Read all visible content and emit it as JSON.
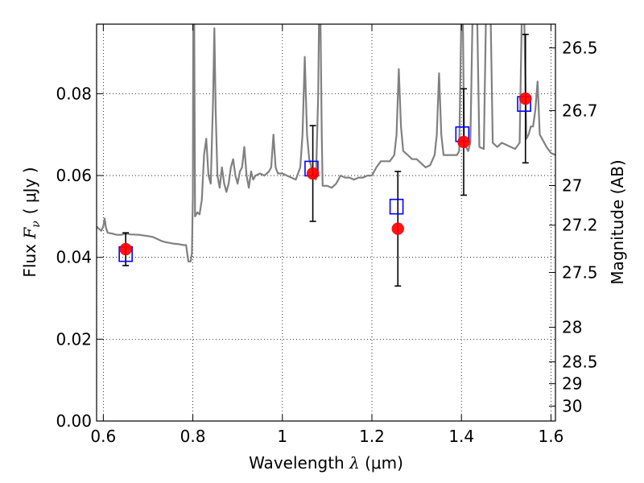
{
  "chart_data": {
    "type": "scatter",
    "xlabel": {
      "prefix": "Wavelength ",
      "symbol": "λ",
      "unit": " (μm)"
    },
    "ylabel": {
      "prefix": "Flux ",
      "symbol_main": "F",
      "symbol_sub": "ν",
      "unit": "( μJy )"
    },
    "y2label": "Magnitude (AB)",
    "xlim": [
      0.585,
      1.61
    ],
    "ylim": [
      0.0,
      0.097
    ],
    "xticks": [
      0.6,
      0.8,
      1.0,
      1.2,
      1.4,
      1.6
    ],
    "xtick_labels": [
      "0.6",
      "0.8",
      "1",
      "1.2",
      "1.4",
      "1.6"
    ],
    "yticks": [
      0.0,
      0.02,
      0.04,
      0.06,
      0.08
    ],
    "ytick_labels": [
      "0.00",
      "0.02",
      "0.04",
      "0.06",
      "0.08"
    ],
    "mag_ticks": [
      26.5,
      26.7,
      27.0,
      27.2,
      27.5,
      28.0,
      28.5,
      29.0,
      30.0
    ],
    "mag_tick_labels": [
      "26.5",
      "26.7",
      "27",
      "27.2",
      "27.5",
      "28",
      "28.5",
      "29",
      "30"
    ],
    "grid": true,
    "series": [
      {
        "kind": "model_spectrum",
        "color": "#808080",
        "points": [
          [
            0.585,
            0.0475
          ],
          [
            0.59,
            0.047
          ],
          [
            0.595,
            0.0465
          ],
          [
            0.6,
            0.0475
          ],
          [
            0.603,
            0.0495
          ],
          [
            0.606,
            0.0472
          ],
          [
            0.61,
            0.046
          ],
          [
            0.62,
            0.0458
          ],
          [
            0.63,
            0.0455
          ],
          [
            0.64,
            0.0455
          ],
          [
            0.65,
            0.0458
          ],
          [
            0.66,
            0.0456
          ],
          [
            0.68,
            0.0455
          ],
          [
            0.7,
            0.0452
          ],
          [
            0.71,
            0.045
          ],
          [
            0.72,
            0.0445
          ],
          [
            0.73,
            0.044
          ],
          [
            0.74,
            0.0437
          ],
          [
            0.75,
            0.0435
          ],
          [
            0.76,
            0.0433
          ],
          [
            0.77,
            0.0432
          ],
          [
            0.78,
            0.043
          ],
          [
            0.785,
            0.043
          ],
          [
            0.79,
            0.039
          ],
          [
            0.795,
            0.039
          ],
          [
            0.798,
            0.041
          ],
          [
            0.8,
            0.055
          ],
          [
            0.801,
            0.1
          ],
          [
            0.803,
            0.1
          ],
          [
            0.805,
            0.05
          ],
          [
            0.81,
            0.051
          ],
          [
            0.815,
            0.0505
          ],
          [
            0.82,
            0.054
          ],
          [
            0.825,
            0.065
          ],
          [
            0.83,
            0.069
          ],
          [
            0.835,
            0.06
          ],
          [
            0.84,
            0.058
          ],
          [
            0.845,
            0.078
          ],
          [
            0.848,
            0.096
          ],
          [
            0.851,
            0.076
          ],
          [
            0.855,
            0.06
          ],
          [
            0.86,
            0.057
          ],
          [
            0.865,
            0.062
          ],
          [
            0.87,
            0.058
          ],
          [
            0.875,
            0.056
          ],
          [
            0.88,
            0.058
          ],
          [
            0.885,
            0.062
          ],
          [
            0.89,
            0.064
          ],
          [
            0.895,
            0.06
          ],
          [
            0.9,
            0.058
          ],
          [
            0.905,
            0.061
          ],
          [
            0.91,
            0.062
          ],
          [
            0.915,
            0.067
          ],
          [
            0.92,
            0.06
          ],
          [
            0.925,
            0.057
          ],
          [
            0.93,
            0.061
          ],
          [
            0.935,
            0.059
          ],
          [
            0.94,
            0.06
          ],
          [
            0.95,
            0.0605
          ],
          [
            0.96,
            0.06
          ],
          [
            0.97,
            0.061
          ],
          [
            0.975,
            0.062
          ],
          [
            0.98,
            0.07
          ],
          [
            0.985,
            0.062
          ],
          [
            0.99,
            0.0605
          ],
          [
            1.0,
            0.0605
          ],
          [
            1.01,
            0.06
          ],
          [
            1.02,
            0.0595
          ],
          [
            1.03,
            0.059
          ],
          [
            1.04,
            0.062
          ],
          [
            1.045,
            0.07
          ],
          [
            1.05,
            0.089
          ],
          [
            1.055,
            0.07
          ],
          [
            1.06,
            0.064
          ],
          [
            1.065,
            0.062
          ],
          [
            1.07,
            0.06
          ],
          [
            1.075,
            0.059
          ],
          [
            1.08,
            0.08
          ],
          [
            1.082,
            0.1
          ],
          [
            1.085,
            0.1
          ],
          [
            1.088,
            0.07
          ],
          [
            1.09,
            0.0575
          ],
          [
            1.1,
            0.0575
          ],
          [
            1.11,
            0.057
          ],
          [
            1.12,
            0.058
          ],
          [
            1.13,
            0.06
          ],
          [
            1.14,
            0.0595
          ],
          [
            1.15,
            0.0595
          ],
          [
            1.16,
            0.059
          ],
          [
            1.17,
            0.0595
          ],
          [
            1.18,
            0.0595
          ],
          [
            1.19,
            0.06
          ],
          [
            1.2,
            0.06
          ],
          [
            1.21,
            0.062
          ],
          [
            1.22,
            0.0635
          ],
          [
            1.24,
            0.0635
          ],
          [
            1.25,
            0.065
          ],
          [
            1.255,
            0.07
          ],
          [
            1.26,
            0.086
          ],
          [
            1.265,
            0.072
          ],
          [
            1.27,
            0.066
          ],
          [
            1.28,
            0.065
          ],
          [
            1.29,
            0.064
          ],
          [
            1.3,
            0.064
          ],
          [
            1.31,
            0.063
          ],
          [
            1.32,
            0.062
          ],
          [
            1.33,
            0.0625
          ],
          [
            1.34,
            0.065
          ],
          [
            1.345,
            0.07
          ],
          [
            1.35,
            0.085
          ],
          [
            1.355,
            0.07
          ],
          [
            1.36,
            0.065
          ],
          [
            1.37,
            0.065
          ],
          [
            1.38,
            0.065
          ],
          [
            1.39,
            0.065
          ],
          [
            1.395,
            0.066
          ],
          [
            1.4,
            0.1
          ],
          [
            1.403,
            0.1
          ],
          [
            1.406,
            0.068
          ],
          [
            1.41,
            0.067
          ],
          [
            1.415,
            0.066
          ],
          [
            1.42,
            0.068
          ],
          [
            1.425,
            0.1
          ],
          [
            1.435,
            0.1
          ],
          [
            1.44,
            0.067
          ],
          [
            1.45,
            0.0665
          ],
          [
            1.455,
            0.1
          ],
          [
            1.465,
            0.1
          ],
          [
            1.47,
            0.068
          ],
          [
            1.48,
            0.067
          ],
          [
            1.49,
            0.068
          ],
          [
            1.5,
            0.0675
          ],
          [
            1.51,
            0.067
          ],
          [
            1.52,
            0.0665
          ],
          [
            1.53,
            0.068
          ],
          [
            1.535,
            0.1
          ],
          [
            1.54,
            0.1
          ],
          [
            1.545,
            0.069
          ],
          [
            1.55,
            0.07
          ],
          [
            1.555,
            0.072
          ],
          [
            1.56,
            0.072
          ],
          [
            1.565,
            0.076
          ],
          [
            1.57,
            0.083
          ],
          [
            1.575,
            0.07
          ],
          [
            1.58,
            0.069
          ],
          [
            1.59,
            0.067
          ],
          [
            1.6,
            0.0655
          ],
          [
            1.61,
            0.065
          ]
        ]
      },
      {
        "kind": "observed",
        "color": "#ff0000",
        "points": [
          {
            "x": 0.65,
            "y": 0.042,
            "yerr": 0.004
          },
          {
            "x": 1.068,
            "y": 0.0605,
            "yerr": 0.0117
          },
          {
            "x": 1.258,
            "y": 0.047,
            "yerr": 0.014
          },
          {
            "x": 1.405,
            "y": 0.0682,
            "yerr": 0.013
          },
          {
            "x": 1.543,
            "y": 0.0788,
            "yerr": 0.0157
          }
        ]
      },
      {
        "kind": "model_photometry",
        "color": "#0000ff",
        "points": [
          {
            "x": 0.65,
            "y": 0.0408
          },
          {
            "x": 1.065,
            "y": 0.0617
          },
          {
            "x": 1.255,
            "y": 0.0524
          },
          {
            "x": 1.402,
            "y": 0.0701
          },
          {
            "x": 1.54,
            "y": 0.0775
          }
        ]
      }
    ]
  }
}
